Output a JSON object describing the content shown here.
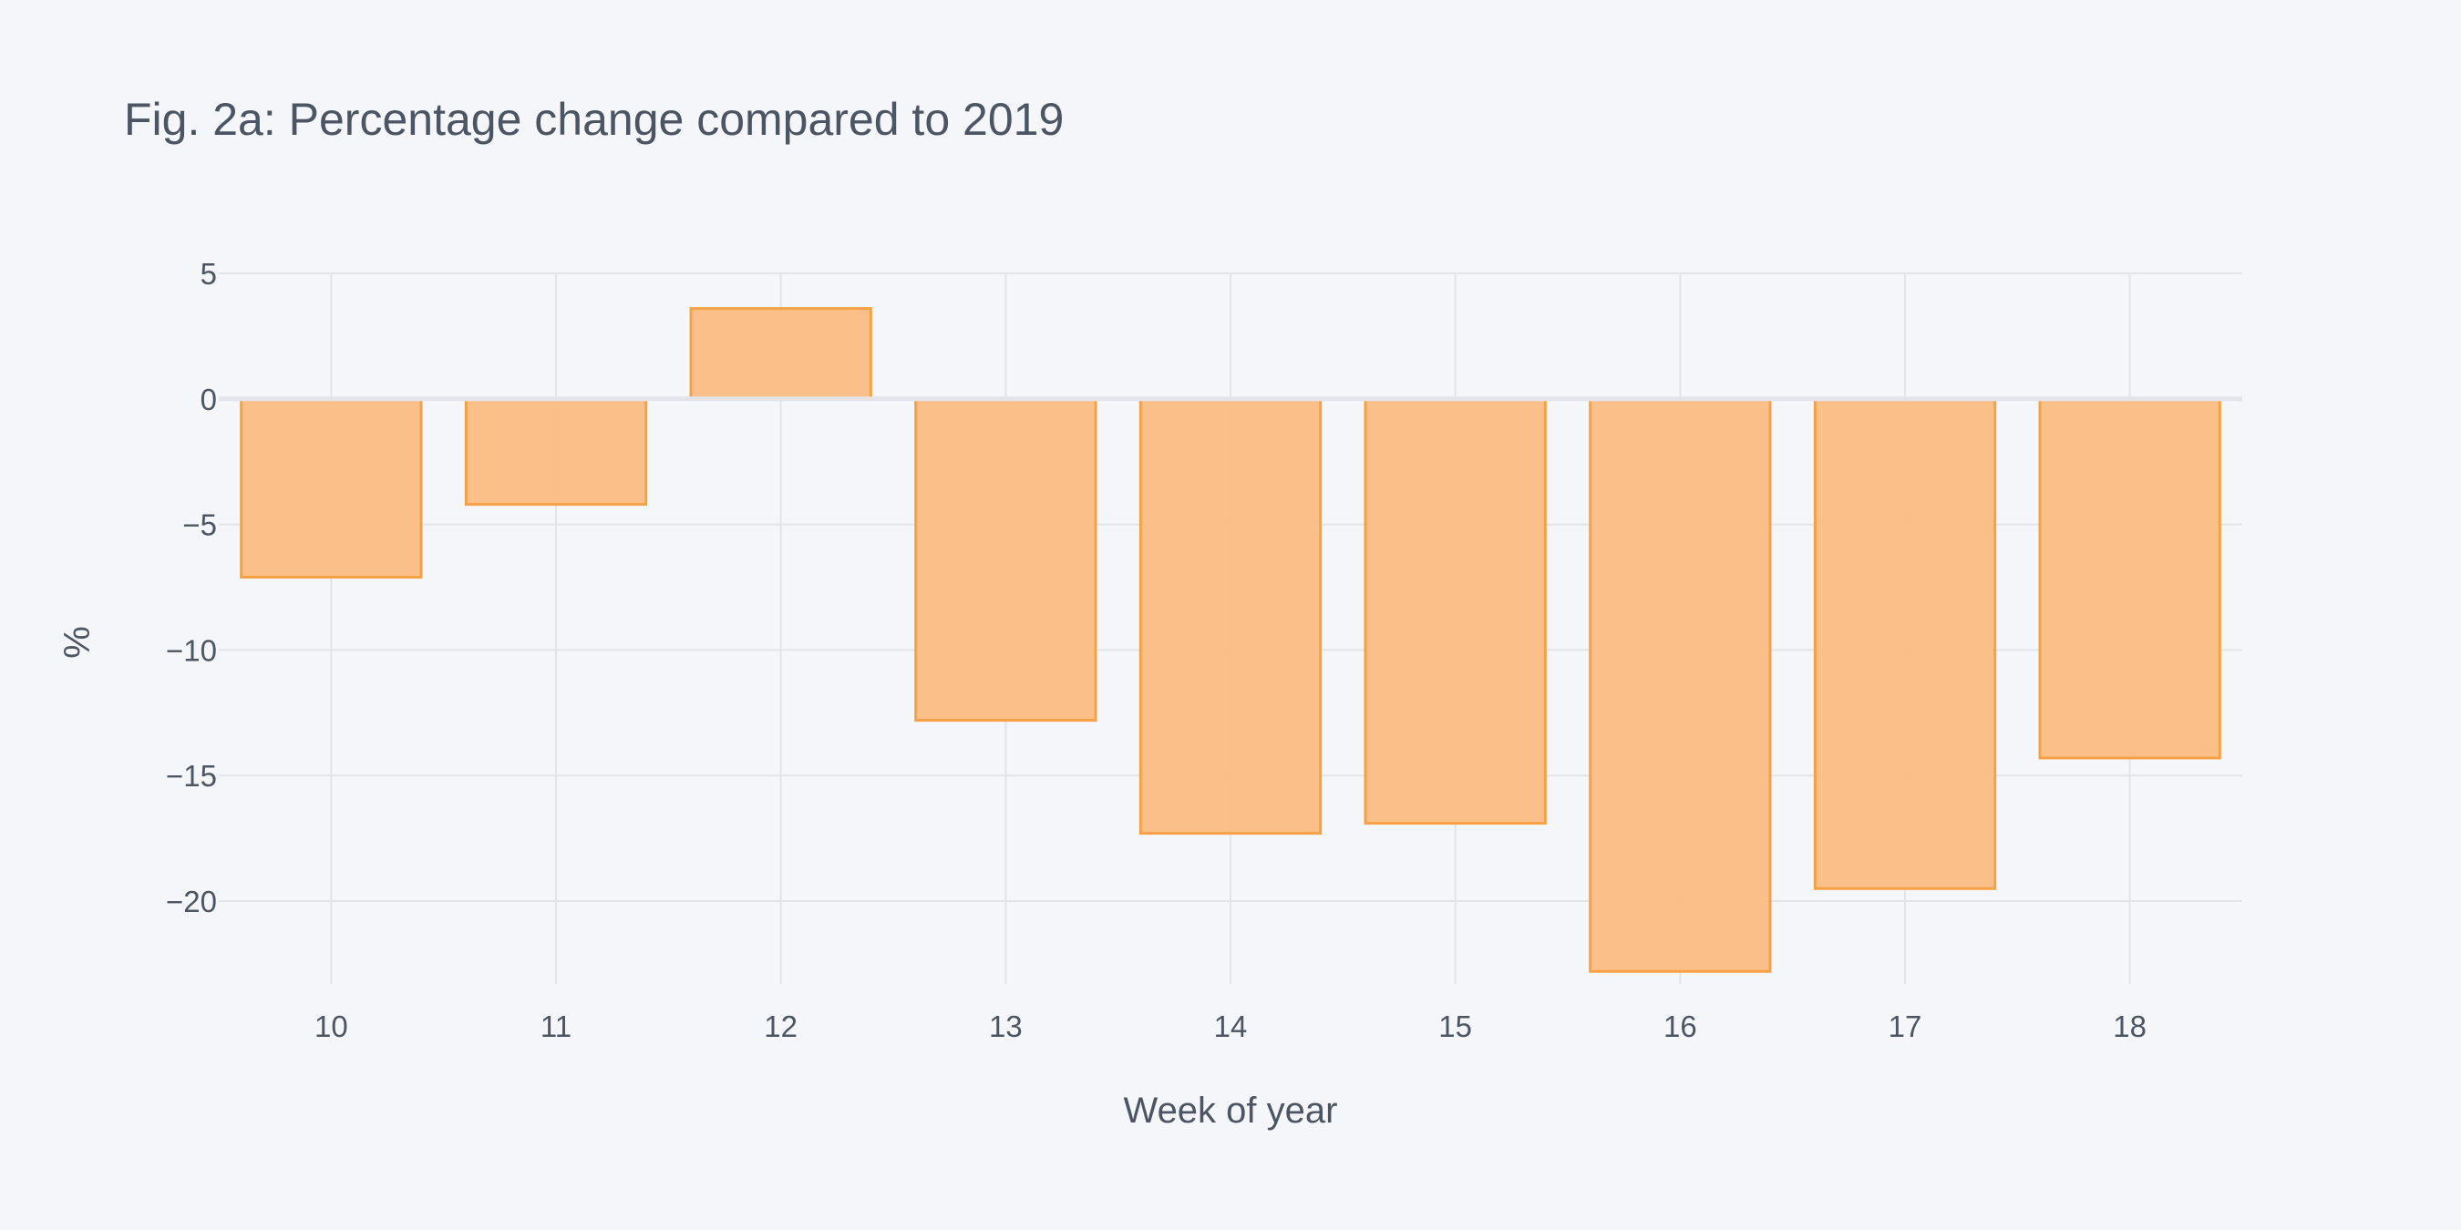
{
  "chart_data": {
    "type": "bar",
    "title": "Fig. 2a: Percentage change compared to 2019",
    "xlabel": "Week of year",
    "ylabel": "%",
    "categories": [
      "10",
      "11",
      "12",
      "13",
      "14",
      "15",
      "16",
      "17",
      "18"
    ],
    "values": [
      -7.1,
      -4.2,
      3.6,
      -12.8,
      -17.3,
      -16.9,
      -22.8,
      -19.5,
      -14.3
    ],
    "ylim": [
      -23.3,
      5
    ],
    "y_ticks": [
      5,
      0,
      -5,
      -10,
      -15,
      -20
    ],
    "y_tick_labels": [
      "5",
      "0",
      "−5",
      "−10",
      "−15",
      "−20"
    ],
    "grid": true,
    "colors": {
      "bar_fill": "#fbbd84",
      "bar_stroke": "#f7a145",
      "grid": "#e2e4ea",
      "text": "#4b5563",
      "background": "#f5f6fa"
    }
  }
}
